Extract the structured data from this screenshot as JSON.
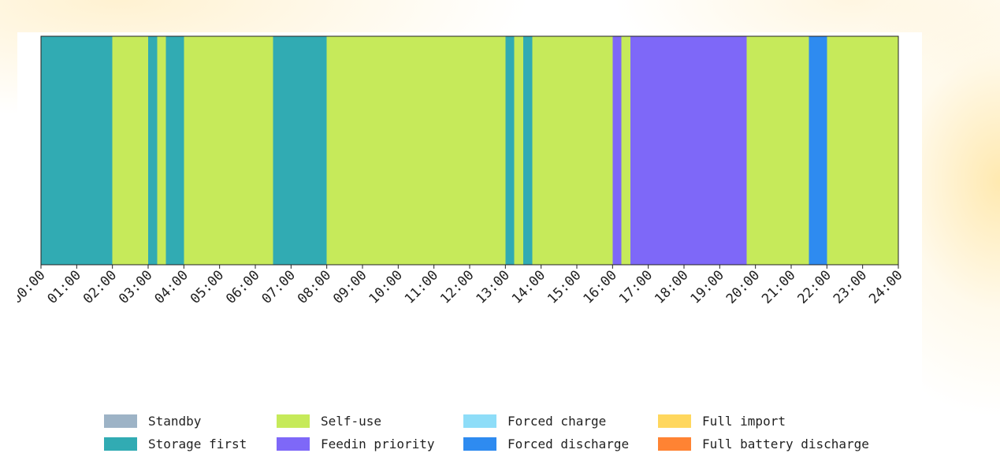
{
  "colors": {
    "standby": "#9DB3C6",
    "storage_first": "#31ABB3",
    "self_use": "#C6EA5A",
    "forced_charge": "#8EDDF8",
    "feedin_priority": "#7E68F8",
    "forced_discharge": "#2E8BF0",
    "full_import": "#FFD75E",
    "full_battery_discharge": "#FF8333"
  },
  "chart_data": {
    "type": "timeline",
    "x_unit": "hours",
    "xlim": [
      0,
      24
    ],
    "x_ticks": [
      0,
      1,
      2,
      3,
      4,
      5,
      6,
      7,
      8,
      9,
      10,
      11,
      12,
      13,
      14,
      15,
      16,
      17,
      18,
      19,
      20,
      21,
      22,
      23,
      24
    ],
    "x_tick_labels": [
      "00:00",
      "01:00",
      "02:00",
      "03:00",
      "04:00",
      "05:00",
      "06:00",
      "07:00",
      "08:00",
      "09:00",
      "10:00",
      "11:00",
      "12:00",
      "13:00",
      "14:00",
      "15:00",
      "16:00",
      "17:00",
      "18:00",
      "19:00",
      "20:00",
      "21:00",
      "22:00",
      "23:00",
      "24:00"
    ],
    "segments": [
      {
        "start": 0.0,
        "end": 2.0,
        "mode": "storage_first"
      },
      {
        "start": 2.0,
        "end": 3.0,
        "mode": "self_use"
      },
      {
        "start": 3.0,
        "end": 3.25,
        "mode": "storage_first"
      },
      {
        "start": 3.25,
        "end": 3.5,
        "mode": "self_use"
      },
      {
        "start": 3.5,
        "end": 4.0,
        "mode": "storage_first"
      },
      {
        "start": 4.0,
        "end": 6.5,
        "mode": "self_use"
      },
      {
        "start": 6.5,
        "end": 8.0,
        "mode": "storage_first"
      },
      {
        "start": 8.0,
        "end": 13.0,
        "mode": "self_use"
      },
      {
        "start": 13.0,
        "end": 13.25,
        "mode": "storage_first"
      },
      {
        "start": 13.25,
        "end": 13.5,
        "mode": "self_use"
      },
      {
        "start": 13.5,
        "end": 13.75,
        "mode": "storage_first"
      },
      {
        "start": 13.75,
        "end": 16.0,
        "mode": "self_use"
      },
      {
        "start": 16.0,
        "end": 16.25,
        "mode": "feedin_priority"
      },
      {
        "start": 16.25,
        "end": 16.5,
        "mode": "self_use"
      },
      {
        "start": 16.5,
        "end": 19.75,
        "mode": "feedin_priority"
      },
      {
        "start": 19.75,
        "end": 21.5,
        "mode": "self_use"
      },
      {
        "start": 21.5,
        "end": 22.0,
        "mode": "forced_discharge"
      },
      {
        "start": 22.0,
        "end": 24.0,
        "mode": "self_use"
      }
    ],
    "legend_position": "bottom",
    "legend": [
      {
        "key": "standby",
        "label": "Standby"
      },
      {
        "key": "storage_first",
        "label": "Storage first"
      },
      {
        "key": "self_use",
        "label": "Self-use"
      },
      {
        "key": "feedin_priority",
        "label": "Feedin priority"
      },
      {
        "key": "forced_charge",
        "label": "Forced charge"
      },
      {
        "key": "forced_discharge",
        "label": "Forced discharge"
      },
      {
        "key": "full_import",
        "label": "Full import"
      },
      {
        "key": "full_battery_discharge",
        "label": "Full battery discharge"
      }
    ]
  }
}
